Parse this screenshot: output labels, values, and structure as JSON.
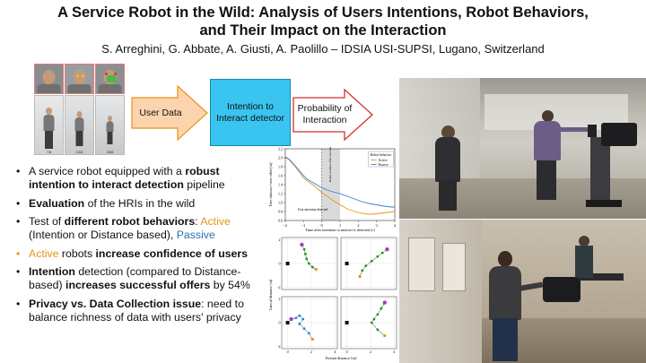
{
  "header": {
    "title_line1": "A Service Robot in the Wild: Analysis of Users Intentions, Robot Behaviors,",
    "title_line2": "and Their Impact on the Interaction",
    "authors": "S. Arreghini, G. Abbate, A. Giusti, A. Paolillo – IDSIA USI-SUPSI, Lugano, Switzerland"
  },
  "thumbnails": {
    "captions": [
      "7/8",
      "13/8",
      "28/8"
    ]
  },
  "pipeline": {
    "input": "User Data",
    "detector": "Intention to Interact detector",
    "output": "Probability of Interaction",
    "colors": {
      "arrow_fill": "#fbd3ad",
      "arrow_stroke": "#e8941a",
      "detector_fill": "#39c5f0",
      "output_stroke": "#d23030"
    }
  },
  "bullets": [
    {
      "segments": [
        {
          "t": "A service robot equipped with a ",
          "s": "n"
        },
        {
          "t": "robust intention to interact detection",
          "s": "b"
        },
        {
          "t": " pipeline",
          "s": "n"
        }
      ]
    },
    {
      "segments": [
        {
          "t": "Evaluation",
          "s": "b"
        },
        {
          "t": " of the HRIs in the wild",
          "s": "n"
        }
      ]
    },
    {
      "segments": [
        {
          "t": "Test of ",
          "s": "n"
        },
        {
          "t": "different robot behaviors",
          "s": "b"
        },
        {
          "t": ": ",
          "s": "n"
        },
        {
          "t": "Active",
          "s": "o"
        },
        {
          "t": " (Intention or Distance based), ",
          "s": "n"
        },
        {
          "t": "Passive",
          "s": "l"
        }
      ]
    },
    {
      "dot": "orange",
      "segments": [
        {
          "t": "Active",
          "s": "o"
        },
        {
          "t": " robots ",
          "s": "n"
        },
        {
          "t": "increase confidence of users",
          "s": "b"
        }
      ]
    },
    {
      "segments": [
        {
          "t": "Intention",
          "s": "b"
        },
        {
          "t": " detection (compared to Distance-based) ",
          "s": "n"
        },
        {
          "t": "increases successful offers",
          "s": "b"
        },
        {
          "t": " by 54%",
          "s": "n"
        }
      ]
    },
    {
      "segments": [
        {
          "t": "Privacy vs. Data Collection issue",
          "s": "b"
        },
        {
          "t": ":  need to balance richness of data with users' privacy",
          "s": "n"
        }
      ]
    }
  ],
  "chart_data": [
    {
      "type": "line",
      "xlabel": "Time after intention to interact is detected [s]",
      "ylabel": "User distance from robot [m]",
      "xlim": [
        -2,
        4
      ],
      "ylim": [
        0.6,
        2.2
      ],
      "xticks": [
        "-2",
        "-1",
        "0",
        "1",
        "2",
        "3",
        "4"
      ],
      "yticks": [
        "0.6",
        "0.8",
        "1.0",
        "1.2",
        "1.4",
        "1.6",
        "1.8",
        "2.0",
        "2.2"
      ],
      "legend_title": "Robot behavior",
      "legend_position": "top-right",
      "shaded_region": [
        0,
        1
      ],
      "annotations": [
        "User intention detected",
        "Robot actuates offer reaction"
      ],
      "series": [
        {
          "name": "Active",
          "color": "#e8941a",
          "x": [
            -2,
            -1.8,
            -1.5,
            -1.2,
            -1,
            -0.8,
            -0.5,
            -0.2,
            0,
            0.3,
            0.6,
            1,
            1.4,
            1.8,
            2.2,
            2.6,
            3,
            3.4,
            3.8,
            4
          ],
          "y": [
            2.0,
            1.96,
            1.82,
            1.66,
            1.55,
            1.48,
            1.4,
            1.3,
            1.22,
            1.14,
            1.05,
            0.95,
            0.86,
            0.8,
            0.76,
            0.74,
            0.75,
            0.77,
            0.79,
            0.8
          ]
        },
        {
          "name": "Passive",
          "color": "#2f7fd0",
          "x": [
            -2,
            -1.8,
            -1.5,
            -1.2,
            -1,
            -0.8,
            -0.5,
            -0.2,
            0,
            0.3,
            0.6,
            1,
            1.4,
            1.8,
            2.2,
            2.6,
            3,
            3.4,
            3.8,
            4
          ],
          "y": [
            2.02,
            1.97,
            1.84,
            1.7,
            1.6,
            1.52,
            1.45,
            1.38,
            1.33,
            1.28,
            1.24,
            1.2,
            1.14,
            1.08,
            1.02,
            0.98,
            0.95,
            0.92,
            0.9,
            0.9
          ]
        }
      ]
    },
    {
      "type": "scatter",
      "panels": 4,
      "xlabel": "Frontal distance [m]",
      "ylabel": "Lateral distance [m]",
      "xticks": [
        "0",
        "2",
        "4"
      ],
      "yticks": [
        "-2",
        "0",
        "2"
      ],
      "trajectories": [
        {
          "color": "#2e8b2e",
          "points": [
            [
              1.2,
              1.6
            ],
            [
              1.4,
              1.2
            ],
            [
              1.5,
              0.8
            ],
            [
              1.6,
              0.4
            ],
            [
              1.8,
              0.0
            ],
            [
              2.1,
              -0.3
            ],
            [
              2.4,
              -0.5
            ]
          ]
        },
        {
          "color": "#2e8b2e",
          "points": [
            [
              3.4,
              1.2
            ],
            [
              3.0,
              0.9
            ],
            [
              2.6,
              0.6
            ],
            [
              2.1,
              0.2
            ],
            [
              1.6,
              -0.2
            ],
            [
              1.3,
              -0.6
            ],
            [
              1.1,
              -1.1
            ]
          ]
        },
        {
          "color": "#2f7fd0",
          "points": [
            [
              0.3,
              0.3
            ],
            [
              0.7,
              0.4
            ],
            [
              1.0,
              0.6
            ],
            [
              1.3,
              0.3
            ],
            [
              1.0,
              -0.1
            ],
            [
              1.4,
              -0.5
            ],
            [
              1.8,
              -0.9
            ],
            [
              2.1,
              -1.4
            ]
          ]
        },
        {
          "color": "#2e8b2e",
          "points": [
            [
              3.2,
              1.7
            ],
            [
              2.9,
              1.2
            ],
            [
              2.6,
              0.7
            ],
            [
              2.3,
              0.3
            ],
            [
              2.1,
              0.0
            ],
            [
              2.6,
              -0.6
            ],
            [
              3.2,
              -1.1
            ]
          ]
        }
      ]
    }
  ]
}
